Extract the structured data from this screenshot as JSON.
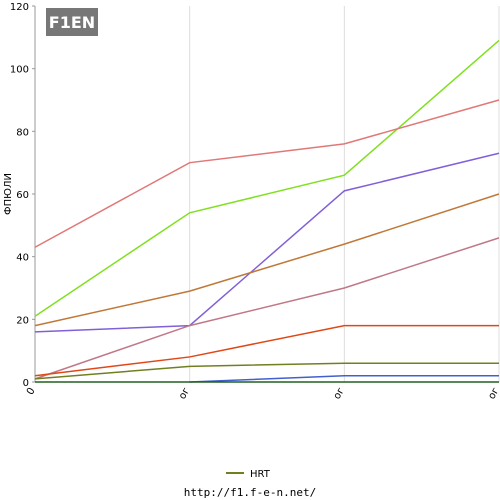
{
  "logo": "F1EN",
  "footer": "http://f1.f-e-n.net/",
  "chart_data": {
    "type": "line",
    "y_label": "ФПЮЛИ",
    "categories": [
      "0",
      "ог",
      "ог",
      "ог"
    ],
    "ylim": [
      0,
      120
    ],
    "yticks": [
      0,
      20,
      40,
      60,
      80,
      100,
      120
    ],
    "series": [
      {
        "color": "#80e020",
        "values": [
          21,
          54,
          66,
          109
        ]
      },
      {
        "color": "#e07878",
        "values": [
          43,
          70,
          76,
          90
        ]
      },
      {
        "color": "#8060d8",
        "values": [
          16,
          18,
          61,
          73
        ]
      },
      {
        "color": "#c07838",
        "values": [
          18,
          29,
          44,
          60
        ]
      },
      {
        "color": "#c07888",
        "values": [
          1,
          18,
          30,
          46
        ]
      },
      {
        "color": "#e04818",
        "values": [
          2,
          8,
          18,
          18
        ]
      },
      {
        "name": "HRT",
        "color": "#708020",
        "values": [
          1,
          5,
          6,
          6
        ]
      },
      {
        "color": "#4060d0",
        "values": [
          null,
          0,
          2,
          2
        ]
      },
      {
        "color": "#206020",
        "values": [
          0,
          0,
          0,
          0
        ]
      }
    ]
  }
}
